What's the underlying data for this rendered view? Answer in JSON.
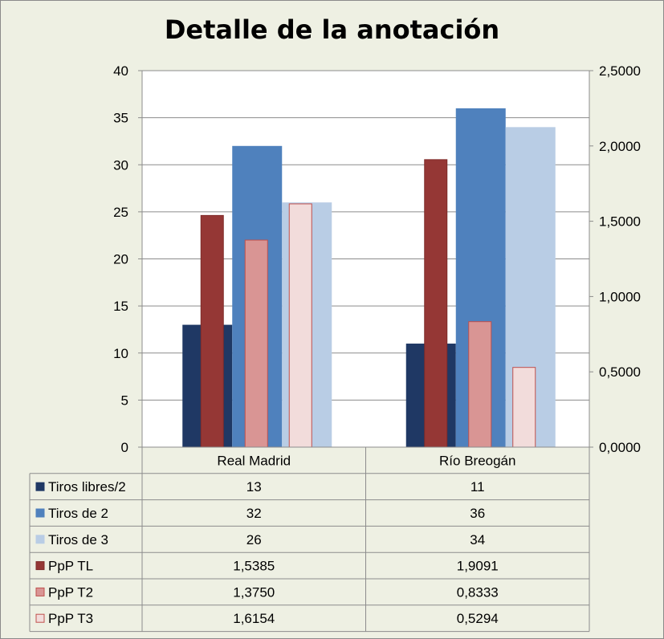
{
  "chart_data": {
    "type": "bar",
    "title": "Detalle de la anotación",
    "categories": [
      "Real Madrid",
      "Río Breogán"
    ],
    "y_left": {
      "range": [
        0,
        40
      ],
      "ticks": [
        "0",
        "5",
        "10",
        "15",
        "20",
        "25",
        "30",
        "35",
        "40"
      ]
    },
    "y_right": {
      "range": [
        0,
        2.5
      ],
      "ticks": [
        "0,0000",
        "0,5000",
        "1,0000",
        "1,5000",
        "2,0000",
        "2,5000"
      ]
    },
    "series": [
      {
        "name": "Tiros libres/2",
        "axis": "left",
        "values": [
          13,
          11
        ],
        "labels": [
          "13",
          "11"
        ],
        "color": "#1f3864",
        "border": "#1f3864"
      },
      {
        "name": "Tiros de 2",
        "axis": "left",
        "values": [
          32,
          36
        ],
        "labels": [
          "32",
          "36"
        ],
        "color": "#4f81bd",
        "border": "#4f81bd"
      },
      {
        "name": "Tiros de 3",
        "axis": "left",
        "values": [
          26,
          34
        ],
        "labels": [
          "26",
          "34"
        ],
        "color": "#b9cde5",
        "border": "#b9cde5"
      },
      {
        "name": "PpP TL",
        "axis": "right",
        "values": [
          1.5385,
          1.9091
        ],
        "labels": [
          "1,5385",
          "1,9091"
        ],
        "color": "#953735",
        "border": "#7f2b29"
      },
      {
        "name": "PpP T2",
        "axis": "right",
        "values": [
          1.375,
          0.8333
        ],
        "labels": [
          "1,3750",
          "0,8333"
        ],
        "color": "#d99594",
        "border": "#c0504d"
      },
      {
        "name": "PpP T3",
        "axis": "right",
        "values": [
          1.6154,
          0.5294
        ],
        "labels": [
          "1,6154",
          "0,5294"
        ],
        "color": "#f2dcdb",
        "border": "#c0504d"
      }
    ],
    "data_table": true,
    "grid": true
  }
}
